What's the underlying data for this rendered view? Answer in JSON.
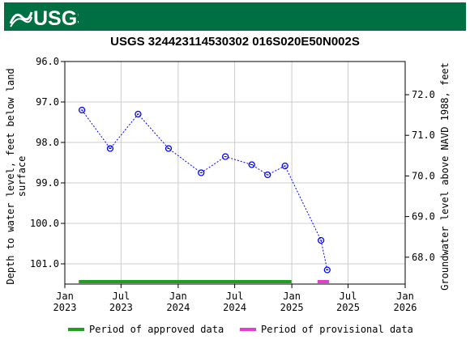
{
  "header": {
    "logo_text": "USGS",
    "banner_color": "#006f41"
  },
  "chart_data": {
    "type": "scatter",
    "title": "USGS 324423114530302 016S020E50N002S",
    "ylabel_left": "Depth to water level, feet below land surface",
    "ylabel_right": "Groundwater level above NAVD 1988, feet",
    "y_left_range": [
      96.0,
      101.5
    ],
    "y_left_ticks": [
      "96.0",
      "97.0",
      "98.0",
      "99.0",
      "100.0",
      "101.0"
    ],
    "y_right_ticks": [
      "72.0",
      "71.0",
      "70.0",
      "69.0",
      "68.0"
    ],
    "x_range": [
      "2023-01-01",
      "2026-01-01"
    ],
    "x_ticks": [
      {
        "date": "2023-01-01",
        "line1": "Jan",
        "line2": "2023"
      },
      {
        "date": "2023-07-01",
        "line1": "Jul",
        "line2": "2023"
      },
      {
        "date": "2024-01-01",
        "line1": "Jan",
        "line2": "2024"
      },
      {
        "date": "2024-07-01",
        "line1": "Jul",
        "line2": "2024"
      },
      {
        "date": "2025-01-01",
        "line1": "Jan",
        "line2": "2025"
      },
      {
        "date": "2025-07-01",
        "line1": "Jul",
        "line2": "2025"
      },
      {
        "date": "2026-01-01",
        "line1": "Jan",
        "line2": "2026"
      }
    ],
    "grid": true,
    "points": [
      {
        "date": "2023-02-25",
        "value": 97.2
      },
      {
        "date": "2023-05-27",
        "value": 98.15
      },
      {
        "date": "2023-08-25",
        "value": 97.3
      },
      {
        "date": "2023-12-01",
        "value": 98.15
      },
      {
        "date": "2024-03-15",
        "value": 98.75
      },
      {
        "date": "2024-06-01",
        "value": 98.35
      },
      {
        "date": "2024-08-25",
        "value": 98.55
      },
      {
        "date": "2024-10-15",
        "value": 98.8
      },
      {
        "date": "2024-12-10",
        "value": 98.58
      },
      {
        "date": "2025-04-05",
        "value": 100.42
      },
      {
        "date": "2025-04-25",
        "value": 101.15
      }
    ],
    "series_color": "#0000ff",
    "approved_period": {
      "start": "2023-02-15",
      "end": "2024-12-31",
      "color": "#1f9e1f"
    },
    "provisional_period": {
      "start": "2025-03-25",
      "end": "2025-05-01",
      "color": "#e040d0"
    },
    "legend": {
      "approved_label": "Period of approved data",
      "provisional_label": "Period of provisional data"
    }
  }
}
